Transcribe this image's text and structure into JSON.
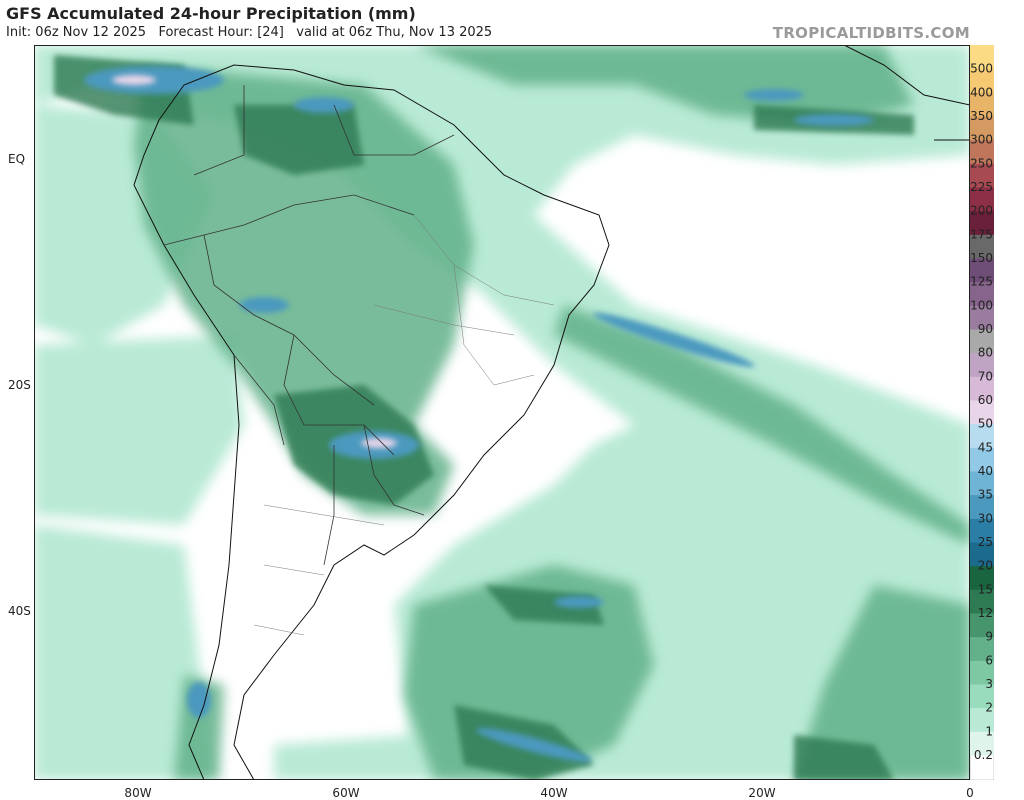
{
  "header": {
    "title": "GFS Accumulated 24-hour Precipitation (mm)",
    "subtitle": "Init: 06z Nov 12 2025   Forecast Hour: [24]   valid at 06z Thu, Nov 13 2025",
    "brand": "TROPICALTIDBITS.COM"
  },
  "axes": {
    "lat_labels": [
      "EQ",
      "20S",
      "40S"
    ],
    "lon_labels": [
      "80W",
      "60W",
      "40W",
      "20W",
      "0"
    ]
  },
  "colorbar": {
    "levels": [
      {
        "label": "0.2",
        "color": "#dff4ea"
      },
      {
        "label": "1",
        "color": "#b9ead5"
      },
      {
        "label": "2",
        "color": "#99dcbd"
      },
      {
        "label": "3",
        "color": "#7fc8a4"
      },
      {
        "label": "6",
        "color": "#62b18a"
      },
      {
        "label": "9",
        "color": "#46956d"
      },
      {
        "label": "12",
        "color": "#2d7a53"
      },
      {
        "label": "15",
        "color": "#18653f"
      },
      {
        "label": "20",
        "color": "#1b6b8f"
      },
      {
        "label": "25",
        "color": "#2b7fa6"
      },
      {
        "label": "30",
        "color": "#4b99bf"
      },
      {
        "label": "35",
        "color": "#6fb3d5"
      },
      {
        "label": "40",
        "color": "#92c9e6"
      },
      {
        "label": "45",
        "color": "#b7dcef"
      },
      {
        "label": "50",
        "color": "#e8d5ea"
      },
      {
        "label": "60",
        "color": "#d6bad8"
      },
      {
        "label": "70",
        "color": "#bfa3c2"
      },
      {
        "label": "80",
        "color": "#a9a9a9"
      },
      {
        "label": "90",
        "color": "#9a7d9e"
      },
      {
        "label": "100",
        "color": "#86648b"
      },
      {
        "label": "125",
        "color": "#6e4d77"
      },
      {
        "label": "150",
        "color": "#696969"
      },
      {
        "label": "175",
        "color": "#6a1f3a"
      },
      {
        "label": "200",
        "color": "#8c2f47"
      },
      {
        "label": "225",
        "color": "#a84a52"
      },
      {
        "label": "250",
        "color": "#c0765a"
      },
      {
        "label": "300",
        "color": "#d59a62"
      },
      {
        "label": "350",
        "color": "#e8b468"
      },
      {
        "label": "400",
        "color": "#f5ca72"
      },
      {
        "label": "500",
        "color": "#fbdc84"
      }
    ]
  }
}
